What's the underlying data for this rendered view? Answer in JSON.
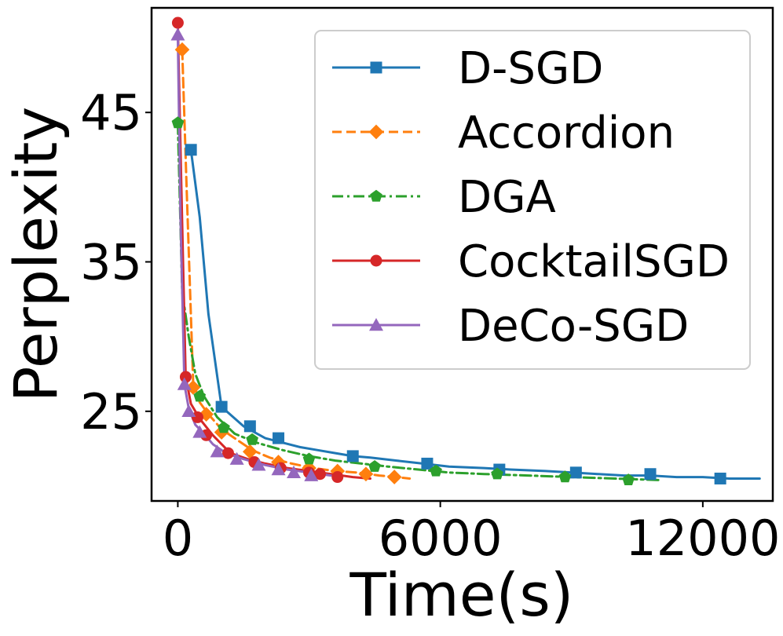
{
  "chart_data": {
    "type": "line",
    "title": "",
    "xlabel": "Time(s)",
    "ylabel": "Perplexity",
    "xlim": [
      -600,
      13600
    ],
    "ylim": [
      19,
      52
    ],
    "xticks": [
      0,
      6000,
      12000
    ],
    "yticks": [
      25,
      35,
      45
    ],
    "grid": false,
    "legend_position": "top-right",
    "series": [
      {
        "name": "D-SGD",
        "color": "#1f77b4",
        "dash": "solid",
        "marker": "square",
        "x": [
          300,
          500,
          700,
          1000,
          1500,
          2000,
          2400,
          2800,
          3200,
          3600,
          4000,
          4400,
          5000,
          5600,
          6200,
          7000,
          7600,
          8400,
          9000,
          9600,
          10200,
          10800,
          11400,
          12000,
          12600,
          13300
        ],
        "y": [
          42.5,
          38,
          31.5,
          25.3,
          24.0,
          23.2,
          22.9,
          22.6,
          22.4,
          22.2,
          22.0,
          21.9,
          21.7,
          21.5,
          21.3,
          21.2,
          21.1,
          21.0,
          20.9,
          20.8,
          20.7,
          20.7,
          20.6,
          20.6,
          20.5,
          20.5
        ],
        "marker_x": [
          300,
          1000,
          1650,
          2300,
          4000,
          5700,
          7350,
          9100,
          10800,
          12400
        ],
        "marker_y": [
          42.5,
          25.3,
          24.0,
          23.2,
          22.0,
          21.5,
          21.1,
          20.9,
          20.8,
          20.5
        ]
      },
      {
        "name": "Accordion",
        "color": "#ff7f0e",
        "dash": "dashed",
        "marker": "diamond",
        "x": [
          100,
          200,
          350,
          500,
          700,
          1000,
          1300,
          1700,
          2100,
          2600,
          3100,
          3600,
          4100,
          4600,
          5000,
          5300
        ],
        "y": [
          49.2,
          40,
          27.0,
          25.6,
          24.8,
          23.8,
          23.2,
          22.4,
          21.9,
          21.5,
          21.2,
          21.0,
          20.9,
          20.7,
          20.6,
          20.5
        ],
        "marker_x": [
          100,
          350,
          650,
          1000,
          1650,
          2300,
          3000,
          3650,
          4300,
          4950
        ],
        "marker_y": [
          49.2,
          26.6,
          24.8,
          23.6,
          22.3,
          21.6,
          21.2,
          21.0,
          20.8,
          20.6
        ]
      },
      {
        "name": "DGA",
        "color": "#2ca02c",
        "dash": "dashdot",
        "marker": "pentagon",
        "x": [
          0,
          100,
          250,
          400,
          600,
          900,
          1300,
          1800,
          2400,
          3000,
          3600,
          4200,
          4800,
          5500,
          6200,
          7000,
          8000,
          9000,
          10000,
          11000
        ],
        "y": [
          44.3,
          33,
          30,
          27.5,
          26.0,
          24.6,
          23.5,
          22.9,
          22.4,
          22.0,
          21.7,
          21.5,
          21.3,
          21.1,
          20.9,
          20.8,
          20.7,
          20.6,
          20.5,
          20.4
        ],
        "marker_x": [
          0,
          500,
          1050,
          1700,
          3000,
          4500,
          5900,
          7300,
          8850,
          10300
        ],
        "marker_y": [
          44.3,
          26.0,
          23.9,
          23.1,
          21.8,
          21.3,
          21.0,
          20.8,
          20.6,
          20.4
        ]
      },
      {
        "name": "CocktailSGD",
        "color": "#d62728",
        "dash": "solid",
        "marker": "circle",
        "x": [
          0,
          80,
          180,
          300,
          500,
          800,
          1200,
          1600,
          2000,
          2500,
          3000,
          3500,
          4000,
          4400
        ],
        "y": [
          51,
          40,
          27.3,
          25.5,
          24.5,
          23.4,
          22.2,
          21.8,
          21.5,
          21.2,
          21.0,
          20.8,
          20.6,
          20.5
        ],
        "marker_x": [
          0,
          180,
          450,
          650,
          1150,
          1750,
          2350,
          3000,
          3250,
          3650
        ],
        "marker_y": [
          51.0,
          27.3,
          24.6,
          23.4,
          22.2,
          21.6,
          21.2,
          20.9,
          20.8,
          20.6
        ]
      },
      {
        "name": "DeCo-SGD",
        "color": "#9467bd",
        "dash": "solid",
        "marker": "triangle",
        "x": [
          0,
          60,
          150,
          250,
          400,
          600,
          800,
          1100,
          1500,
          2000,
          2500,
          3000,
          3500
        ],
        "y": [
          50.2,
          38,
          26.8,
          25.2,
          24.1,
          23.5,
          22.8,
          22.2,
          21.8,
          21.4,
          21.1,
          20.9,
          20.7
        ],
        "marker_x": [
          0,
          150,
          250,
          500,
          900,
          1350,
          1850,
          2300,
          2650,
          3050
        ],
        "marker_y": [
          50.2,
          26.8,
          25.0,
          23.6,
          22.3,
          21.8,
          21.4,
          21.1,
          20.9,
          20.7
        ]
      }
    ]
  }
}
